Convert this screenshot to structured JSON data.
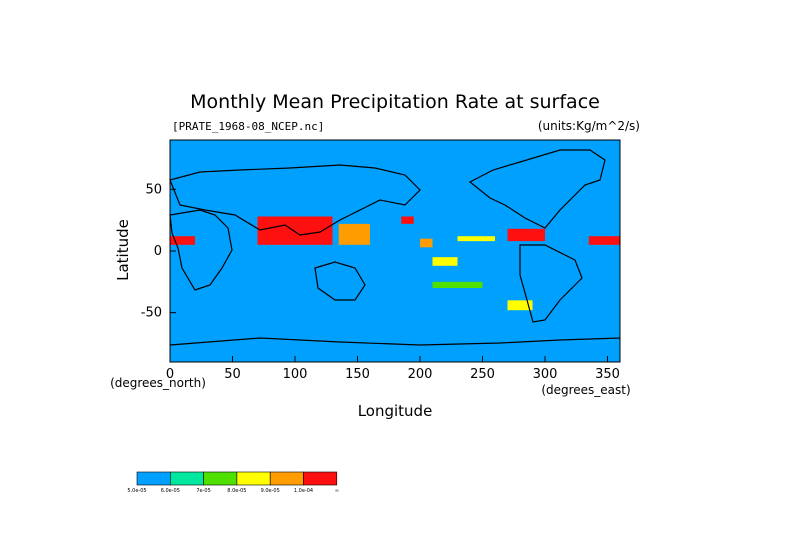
{
  "chart_data": {
    "type": "heatmap",
    "title": "Monthly Mean Precipitation Rate at surface",
    "subtitle_left": "[PRATE_1968-08_NCEP.nc]",
    "subtitle_right": "(units:Kg/m^2/s)",
    "xlabel": "Longitude",
    "ylabel": "Latitude",
    "x_unit": "(degrees_east)",
    "y_unit": "(degrees_north)",
    "xlim": [
      0,
      360
    ],
    "ylim": [
      -90,
      90
    ],
    "x_ticks": [
      0,
      50,
      100,
      150,
      200,
      250,
      300,
      350
    ],
    "y_ticks": [
      -50,
      0,
      50
    ],
    "colorbar": {
      "labels": [
        "5.0e-05",
        "6.0e-05",
        "7e-05",
        "8.0e-05",
        "9.0e-05",
        "1.0e-04",
        "∞"
      ],
      "colors": [
        "#00a0ff",
        "#00e8a0",
        "#50e000",
        "#ffff00",
        "#ff9d00",
        "#ff1010"
      ]
    },
    "missing_color": "#ffffff",
    "base_color": "#00a0ff",
    "regions": [
      {
        "level": 5,
        "lon": [
          70,
          130
        ],
        "lat": [
          5,
          28
        ]
      },
      {
        "level": 4,
        "lon": [
          135,
          160
        ],
        "lat": [
          5,
          22
        ]
      },
      {
        "level": 5,
        "lon": [
          185,
          195
        ],
        "lat": [
          22,
          28
        ]
      },
      {
        "level": 4,
        "lon": [
          200,
          210
        ],
        "lat": [
          3,
          10
        ]
      },
      {
        "level": 5,
        "lon": [
          0,
          20
        ],
        "lat": [
          5,
          12
        ]
      },
      {
        "level": 5,
        "lon": [
          270,
          300
        ],
        "lat": [
          8,
          18
        ]
      },
      {
        "level": 5,
        "lon": [
          335,
          360
        ],
        "lat": [
          5,
          12
        ]
      },
      {
        "level": 3,
        "lon": [
          230,
          260
        ],
        "lat": [
          8,
          12
        ]
      },
      {
        "level": 3,
        "lon": [
          210,
          230
        ],
        "lat": [
          -12,
          -5
        ]
      },
      {
        "level": 2,
        "lon": [
          210,
          250
        ],
        "lat": [
          -30,
          -25
        ]
      },
      {
        "level": 3,
        "lon": [
          270,
          290
        ],
        "lat": [
          -48,
          -40
        ]
      }
    ]
  }
}
